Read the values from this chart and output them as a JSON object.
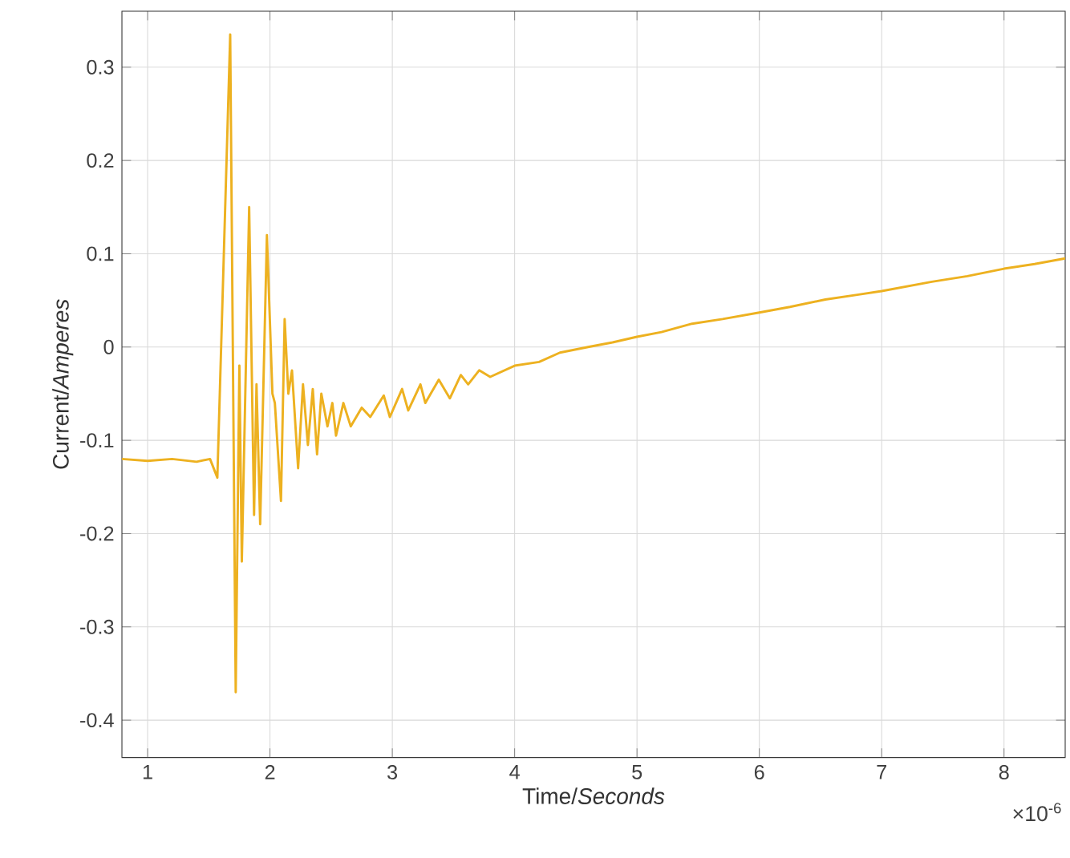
{
  "chart_data": {
    "type": "line",
    "xlabel": "Time/*Seconds*",
    "ylabel": "Current/*Amperes*",
    "annotations": [
      "×10$^{-6}$"
    ],
    "x": [
      0.79,
      1.0,
      1.2,
      1.4,
      1.51,
      1.57,
      1.675,
      1.72,
      1.75,
      1.77,
      1.83,
      1.87,
      1.89,
      1.92,
      1.975,
      2.02,
      2.04,
      2.09,
      2.12,
      2.15,
      2.18,
      2.23,
      2.27,
      2.31,
      2.35,
      2.385,
      2.42,
      2.47,
      2.51,
      2.54,
      2.6,
      2.66,
      2.75,
      2.82,
      2.93,
      2.98,
      3.08,
      3.13,
      3.23,
      3.27,
      3.38,
      3.47,
      3.56,
      3.62,
      3.71,
      3.8,
      4.0,
      4.2,
      4.37,
      4.6,
      4.8,
      5.0,
      5.2,
      5.45,
      5.7,
      6.0,
      6.25,
      6.54,
      6.8,
      7.0,
      7.41,
      7.7,
      8.0,
      8.25,
      8.5
    ],
    "series": [
      {
        "color": "#edb120",
        "values": [
          -0.12,
          -0.122,
          -0.12,
          -0.123,
          -0.12,
          -0.14,
          0.335,
          -0.37,
          -0.02,
          -0.23,
          0.15,
          -0.18,
          -0.04,
          -0.19,
          0.12,
          -0.05,
          -0.06,
          -0.165,
          0.03,
          -0.05,
          -0.025,
          -0.13,
          -0.04,
          -0.105,
          -0.045,
          -0.115,
          -0.05,
          -0.085,
          -0.06,
          -0.095,
          -0.06,
          -0.085,
          -0.065,
          -0.075,
          -0.052,
          -0.075,
          -0.045,
          -0.068,
          -0.04,
          -0.06,
          -0.035,
          -0.055,
          -0.03,
          -0.04,
          -0.025,
          -0.032,
          -0.02,
          -0.016,
          -0.006,
          0.0,
          0.005,
          0.011,
          0.016,
          0.025,
          0.03,
          0.037,
          0.043,
          0.051,
          0.056,
          0.06,
          0.07,
          0.076,
          0.084,
          0.089,
          0.095
        ]
      }
    ],
    "xlim": [
      0.79,
      8.5
    ],
    "ylim": [
      -0.44,
      0.36
    ],
    "xticks": [
      1,
      2,
      3,
      4,
      5,
      6,
      7,
      8
    ],
    "yticks": [
      -0.4,
      -0.3,
      -0.2,
      -0.1,
      0,
      0.1,
      0.2,
      0.3
    ],
    "grid": true
  }
}
